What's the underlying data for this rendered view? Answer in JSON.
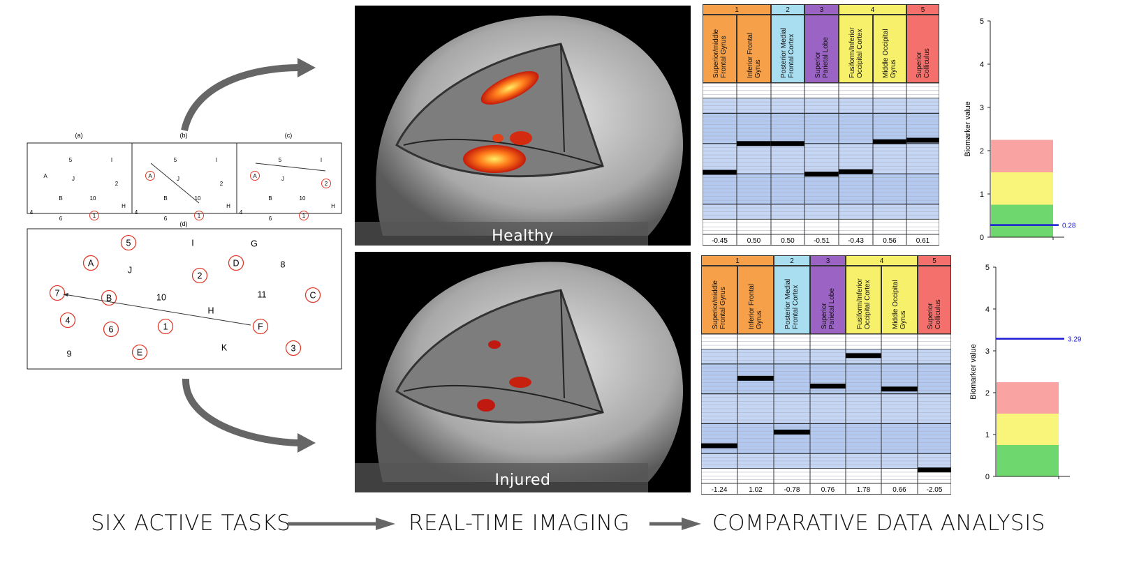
{
  "tasks": {
    "small_panel_labels": [
      "(a)",
      "(b)",
      "(c)"
    ],
    "large_panel_label": "(d)",
    "small_panel_items": [
      {
        "t": "5",
        "circled": false
      },
      {
        "t": "I",
        "circled": false
      },
      {
        "t": "A",
        "circled": false
      },
      {
        "t": "J",
        "circled": false
      },
      {
        "t": "2",
        "circled": false
      },
      {
        "t": "B",
        "circled": false
      },
      {
        "t": "10",
        "circled": false
      },
      {
        "t": "H",
        "circled": false
      },
      {
        "t": "4",
        "circled": false
      },
      {
        "t": "6",
        "circled": false
      },
      {
        "t": "1",
        "circled": true
      }
    ],
    "large_panel_items": [
      {
        "t": "5",
        "circled": true
      },
      {
        "t": "I",
        "circled": false
      },
      {
        "t": "G",
        "circled": false
      },
      {
        "t": "A",
        "circled": true
      },
      {
        "t": "J",
        "circled": false
      },
      {
        "t": "2",
        "circled": true
      },
      {
        "t": "D",
        "circled": true
      },
      {
        "t": "8",
        "circled": false
      },
      {
        "t": "7",
        "circled": true
      },
      {
        "t": "B",
        "circled": true
      },
      {
        "t": "10",
        "circled": false
      },
      {
        "t": "11",
        "circled": false
      },
      {
        "t": "C",
        "circled": true
      },
      {
        "t": "H",
        "circled": false
      },
      {
        "t": "4",
        "circled": true
      },
      {
        "t": "6",
        "circled": true
      },
      {
        "t": "1",
        "circled": true
      },
      {
        "t": "F",
        "circled": true
      },
      {
        "t": "9",
        "circled": false
      },
      {
        "t": "E",
        "circled": true
      },
      {
        "t": "K",
        "circled": false
      },
      {
        "t": "3",
        "circled": true
      }
    ]
  },
  "imaging": {
    "healthy_label": "Healthy",
    "injured_label": "Injured"
  },
  "regions_table": {
    "groups": [
      {
        "num": "1",
        "color": "#f7a04a",
        "span": 2
      },
      {
        "num": "2",
        "color": "#a8def0",
        "span": 1
      },
      {
        "num": "3",
        "color": "#9b63c4",
        "span": 1
      },
      {
        "num": "4",
        "color": "#f7f06a",
        "span": 2
      },
      {
        "num": "5",
        "color": "#f4706d",
        "span": 1
      }
    ],
    "columns": [
      {
        "label": "Superior/middle\nFrontal Gyrus",
        "color": "#f7a04a"
      },
      {
        "label": "Inferior Frontal\nGyrus",
        "color": "#f7a04a"
      },
      {
        "label": "Posterior Medial\nFrontal Cortex",
        "color": "#a8def0"
      },
      {
        "label": "Superior\nParietal Lobe",
        "color": "#9b63c4"
      },
      {
        "label": "Fusiform/Inferior\nOccipital Cortex",
        "color": "#f7f06a"
      },
      {
        "label": "Middle Occipital\nGyrus",
        "color": "#f7f06a"
      },
      {
        "label": "Superior\nColliculus",
        "color": "#f4706d"
      }
    ],
    "healthy_values": [
      -0.45,
      0.5,
      0.5,
      -0.51,
      -0.43,
      0.56,
      0.61
    ],
    "healthy_value_labels": [
      "-0.45",
      "0.50",
      "0.50",
      "-0.51",
      "-0.43",
      "0.56",
      "0.61"
    ],
    "injured_values": [
      -1.24,
      1.02,
      -0.78,
      0.76,
      1.78,
      0.66,
      -2.05
    ],
    "injured_value_labels": [
      "-1.24",
      "1.02",
      "-0.78",
      "0.76",
      "1.78",
      "0.66",
      "-2.05"
    ]
  },
  "chart_data": [
    {
      "type": "bar",
      "ylabel": "Biomarker value",
      "ylim": [
        0,
        5
      ],
      "yticks": [
        "0",
        "1",
        "2",
        "3",
        "4",
        "5"
      ],
      "bands": [
        {
          "from": 0,
          "to": 0.75,
          "color": "#6ed86e"
        },
        {
          "from": 0.75,
          "to": 1.5,
          "color": "#f8f57a"
        },
        {
          "from": 1.5,
          "to": 2.25,
          "color": "#f9a3a3"
        }
      ],
      "biomarker_value": 0.28,
      "biomarker_label": "0.28",
      "line_color": "#1a1ad6"
    },
    {
      "type": "bar",
      "ylabel": "Biomarker value",
      "ylim": [
        0,
        5
      ],
      "yticks": [
        "0",
        "1",
        "2",
        "3",
        "4",
        "5"
      ],
      "bands": [
        {
          "from": 0,
          "to": 0.75,
          "color": "#6ed86e"
        },
        {
          "from": 0.75,
          "to": 1.5,
          "color": "#f8f57a"
        },
        {
          "from": 1.5,
          "to": 2.25,
          "color": "#f9a3a3"
        }
      ],
      "biomarker_value": 3.29,
      "biomarker_label": "3.29",
      "line_color": "#1a1ad6"
    }
  ],
  "workflow": {
    "step1": "SIX ACTIVE TASKS",
    "step2": "REAL-TIME IMAGING",
    "step3": "COMPARATIVE DATA ANALYSIS"
  }
}
